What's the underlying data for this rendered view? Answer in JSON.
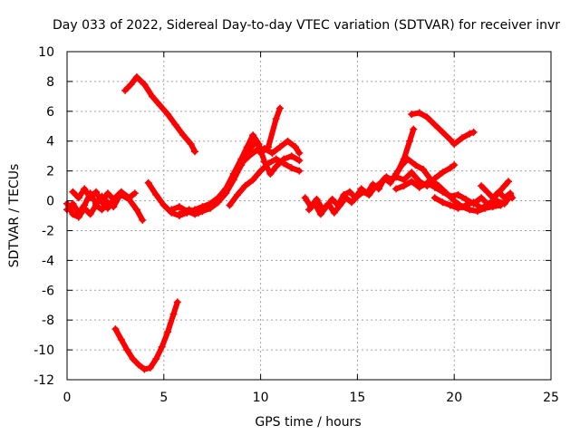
{
  "chart_data": {
    "type": "scatter",
    "title": "Day 033 of 2022, Sidereal Day-to-day VTEC variation (SDTVAR) for receiver invr",
    "xlabel": "GPS time / hours",
    "ylabel": "SDTVAR / TECUs",
    "xlim": [
      0,
      25
    ],
    "ylim": [
      -12,
      10
    ],
    "xticks": [
      0,
      5,
      10,
      15,
      20,
      25
    ],
    "yticks": [
      -12,
      -10,
      -8,
      -6,
      -4,
      -2,
      0,
      2,
      4,
      6,
      8,
      10
    ],
    "grid": true,
    "legend": "none",
    "color": "#ff0000",
    "series": [
      {
        "name": "s1",
        "points": [
          [
            0.0,
            -0.6
          ],
          [
            0.3,
            -0.2
          ],
          [
            0.6,
            -0.8
          ],
          [
            0.9,
            -0.3
          ],
          [
            1.2,
            0.5
          ],
          [
            1.5,
            -0.2
          ],
          [
            1.8,
            0.3
          ],
          [
            2.1,
            -0.5
          ],
          [
            2.4,
            0.0
          ],
          [
            2.8,
            0.4
          ],
          [
            3.2,
            0.1
          ],
          [
            3.6,
            -0.6
          ],
          [
            3.9,
            -1.3
          ]
        ]
      },
      {
        "name": "s2",
        "points": [
          [
            0.0,
            -0.2
          ],
          [
            0.3,
            -0.9
          ],
          [
            0.6,
            -1.1
          ],
          [
            0.9,
            -0.5
          ],
          [
            1.2,
            -0.9
          ],
          [
            1.5,
            -0.3
          ],
          [
            1.8,
            -0.6
          ],
          [
            2.1,
            -0.1
          ],
          [
            2.4,
            -0.4
          ],
          [
            2.7,
            0.3
          ]
        ]
      },
      {
        "name": "s3",
        "points": [
          [
            0.3,
            0.6
          ],
          [
            0.6,
            0.2
          ],
          [
            0.9,
            0.8
          ],
          [
            1.2,
            0.2
          ],
          [
            1.5,
            0.6
          ],
          [
            1.8,
            -0.1
          ],
          [
            2.1,
            0.5
          ],
          [
            2.4,
            0.1
          ],
          [
            2.8,
            0.6
          ],
          [
            3.2,
            0.2
          ],
          [
            3.5,
            0.5
          ]
        ]
      },
      {
        "name": "s4",
        "points": [
          [
            3.0,
            7.4
          ],
          [
            3.3,
            7.8
          ],
          [
            3.6,
            8.3
          ],
          [
            4.0,
            7.8
          ],
          [
            4.4,
            7.0
          ],
          [
            4.8,
            6.4
          ],
          [
            5.2,
            5.8
          ],
          [
            5.6,
            5.1
          ],
          [
            6.0,
            4.4
          ],
          [
            6.4,
            3.8
          ],
          [
            6.6,
            3.3
          ]
        ]
      },
      {
        "name": "s5",
        "points": [
          [
            2.5,
            -8.6
          ],
          [
            2.8,
            -9.3
          ],
          [
            3.1,
            -10.0
          ],
          [
            3.4,
            -10.6
          ],
          [
            3.7,
            -11.0
          ],
          [
            4.0,
            -11.3
          ],
          [
            4.3,
            -11.2
          ],
          [
            4.6,
            -10.6
          ],
          [
            4.9,
            -9.8
          ],
          [
            5.2,
            -8.8
          ],
          [
            5.5,
            -7.6
          ],
          [
            5.7,
            -6.8
          ]
        ]
      },
      {
        "name": "s6",
        "points": [
          [
            4.2,
            1.2
          ],
          [
            4.6,
            0.4
          ],
          [
            5.0,
            -0.3
          ],
          [
            5.4,
            -0.8
          ],
          [
            5.8,
            -1.0
          ],
          [
            6.2,
            -0.8
          ],
          [
            6.6,
            -0.6
          ],
          [
            7.0,
            -0.4
          ],
          [
            7.4,
            -0.2
          ],
          [
            7.8,
            0.2
          ],
          [
            8.2,
            0.8
          ],
          [
            8.6,
            1.6
          ],
          [
            9.0,
            2.5
          ],
          [
            9.4,
            3.0
          ],
          [
            9.8,
            3.4
          ],
          [
            10.2,
            3.5
          ],
          [
            10.6,
            3.2
          ],
          [
            11.0,
            3.6
          ],
          [
            11.4,
            4.0
          ],
          [
            11.8,
            3.6
          ],
          [
            12.0,
            3.2
          ]
        ]
      },
      {
        "name": "s7",
        "points": [
          [
            5.4,
            -0.6
          ],
          [
            5.8,
            -0.4
          ],
          [
            6.2,
            -0.7
          ],
          [
            6.6,
            -0.9
          ],
          [
            7.0,
            -0.7
          ],
          [
            7.4,
            -0.5
          ],
          [
            7.8,
            -0.1
          ],
          [
            8.2,
            0.5
          ],
          [
            8.6,
            1.4
          ],
          [
            9.0,
            2.4
          ],
          [
            9.4,
            3.4
          ],
          [
            9.8,
            4.0
          ],
          [
            10.0,
            3.2
          ],
          [
            10.4,
            3.6
          ],
          [
            10.8,
            5.5
          ],
          [
            11.0,
            6.2
          ]
        ]
      },
      {
        "name": "s8",
        "points": [
          [
            5.8,
            -0.9
          ],
          [
            6.3,
            -0.6
          ],
          [
            6.8,
            -0.8
          ],
          [
            7.3,
            -0.5
          ],
          [
            7.8,
            0.0
          ],
          [
            8.2,
            0.8
          ],
          [
            8.6,
            1.8
          ],
          [
            9.0,
            2.8
          ],
          [
            9.3,
            3.6
          ],
          [
            9.6,
            4.4
          ],
          [
            9.9,
            3.8
          ],
          [
            10.2,
            2.6
          ],
          [
            10.5,
            1.8
          ],
          [
            10.8,
            2.3
          ],
          [
            11.2,
            2.8
          ],
          [
            11.6,
            3.0
          ],
          [
            12.0,
            2.7
          ]
        ]
      },
      {
        "name": "s9",
        "points": [
          [
            8.4,
            -0.3
          ],
          [
            8.8,
            0.4
          ],
          [
            9.2,
            1.0
          ],
          [
            9.6,
            1.4
          ],
          [
            10.0,
            2.0
          ],
          [
            10.4,
            2.5
          ],
          [
            10.8,
            2.8
          ],
          [
            11.2,
            2.5
          ],
          [
            11.6,
            2.2
          ],
          [
            12.0,
            2.0
          ]
        ]
      },
      {
        "name": "s10",
        "points": [
          [
            12.3,
            0.2
          ],
          [
            12.6,
            -0.4
          ],
          [
            12.9,
            0.1
          ],
          [
            13.2,
            -0.6
          ],
          [
            13.5,
            -0.2
          ],
          [
            13.8,
            -0.8
          ],
          [
            14.1,
            -0.3
          ],
          [
            14.4,
            0.2
          ],
          [
            14.7,
            -0.1
          ],
          [
            15.0,
            0.3
          ],
          [
            15.3,
            0.6
          ],
          [
            15.6,
            0.4
          ],
          [
            15.9,
            0.9
          ],
          [
            16.2,
            1.2
          ],
          [
            16.5,
            1.6
          ],
          [
            16.8,
            1.4
          ],
          [
            17.1,
            2.0
          ],
          [
            17.4,
            2.8
          ],
          [
            17.7,
            4.0
          ],
          [
            17.9,
            4.8
          ]
        ]
      },
      {
        "name": "s11",
        "points": [
          [
            12.5,
            -0.6
          ],
          [
            12.8,
            -0.2
          ],
          [
            13.1,
            -0.9
          ],
          [
            13.4,
            -0.4
          ],
          [
            13.7,
            0.1
          ],
          [
            14.0,
            -0.3
          ],
          [
            14.3,
            0.4
          ],
          [
            14.6,
            0.6
          ],
          [
            14.9,
            0.2
          ],
          [
            15.2,
            0.8
          ],
          [
            15.5,
            0.5
          ],
          [
            15.8,
            1.1
          ],
          [
            16.1,
            0.8
          ],
          [
            16.4,
            1.5
          ],
          [
            16.7,
            1.2
          ],
          [
            17.0,
            1.8
          ],
          [
            17.3,
            2.4
          ],
          [
            17.6,
            2.8
          ],
          [
            18.0,
            2.4
          ],
          [
            18.4,
            2.1
          ],
          [
            18.8,
            1.4
          ],
          [
            19.2,
            1.0
          ],
          [
            19.6,
            0.5
          ],
          [
            20.0,
            0.0
          ],
          [
            20.4,
            -0.4
          ],
          [
            20.8,
            -0.6
          ],
          [
            21.2,
            -0.7
          ],
          [
            21.6,
            -0.5
          ],
          [
            22.0,
            -0.4
          ],
          [
            22.4,
            -0.3
          ],
          [
            22.8,
            0.2
          ]
        ]
      },
      {
        "name": "s12",
        "points": [
          [
            17.8,
            5.8
          ],
          [
            18.2,
            5.9
          ],
          [
            18.6,
            5.6
          ],
          [
            19.0,
            5.1
          ],
          [
            19.4,
            4.6
          ],
          [
            19.8,
            4.1
          ],
          [
            20.0,
            3.8
          ],
          [
            20.4,
            4.2
          ],
          [
            20.8,
            4.5
          ],
          [
            21.0,
            4.6
          ]
        ]
      },
      {
        "name": "s13",
        "points": [
          [
            16.6,
            1.4
          ],
          [
            17.0,
            1.6
          ],
          [
            17.4,
            1.4
          ],
          [
            17.8,
            1.9
          ],
          [
            18.2,
            1.3
          ],
          [
            18.6,
            1.0
          ],
          [
            19.0,
            1.5
          ],
          [
            19.4,
            1.9
          ],
          [
            19.8,
            2.2
          ],
          [
            20.0,
            2.4
          ]
        ]
      },
      {
        "name": "s14",
        "points": [
          [
            17.0,
            0.8
          ],
          [
            17.4,
            1.0
          ],
          [
            17.8,
            1.3
          ],
          [
            18.2,
            0.9
          ],
          [
            18.6,
            1.2
          ],
          [
            19.0,
            0.9
          ],
          [
            19.4,
            0.6
          ],
          [
            19.8,
            0.3
          ],
          [
            20.2,
            0.4
          ],
          [
            20.6,
            0.1
          ],
          [
            21.0,
            -0.2
          ],
          [
            21.4,
            0.2
          ],
          [
            21.8,
            -0.3
          ],
          [
            22.2,
            0.4
          ],
          [
            22.6,
            1.0
          ],
          [
            22.8,
            1.3
          ]
        ]
      },
      {
        "name": "s15",
        "points": [
          [
            19.0,
            0.2
          ],
          [
            19.4,
            -0.1
          ],
          [
            19.8,
            -0.3
          ],
          [
            20.2,
            -0.5
          ],
          [
            20.6,
            -0.3
          ],
          [
            21.0,
            -0.1
          ],
          [
            21.4,
            -0.5
          ],
          [
            21.8,
            -0.2
          ],
          [
            22.2,
            0.0
          ],
          [
            22.6,
            -0.2
          ],
          [
            22.9,
            0.3
          ]
        ]
      },
      {
        "name": "s16",
        "points": [
          [
            21.4,
            1.0
          ],
          [
            21.7,
            0.6
          ],
          [
            22.0,
            0.2
          ],
          [
            22.3,
            0.6
          ],
          [
            22.6,
            0.2
          ],
          [
            22.9,
            0.5
          ],
          [
            23.0,
            0.2
          ]
        ]
      }
    ]
  }
}
